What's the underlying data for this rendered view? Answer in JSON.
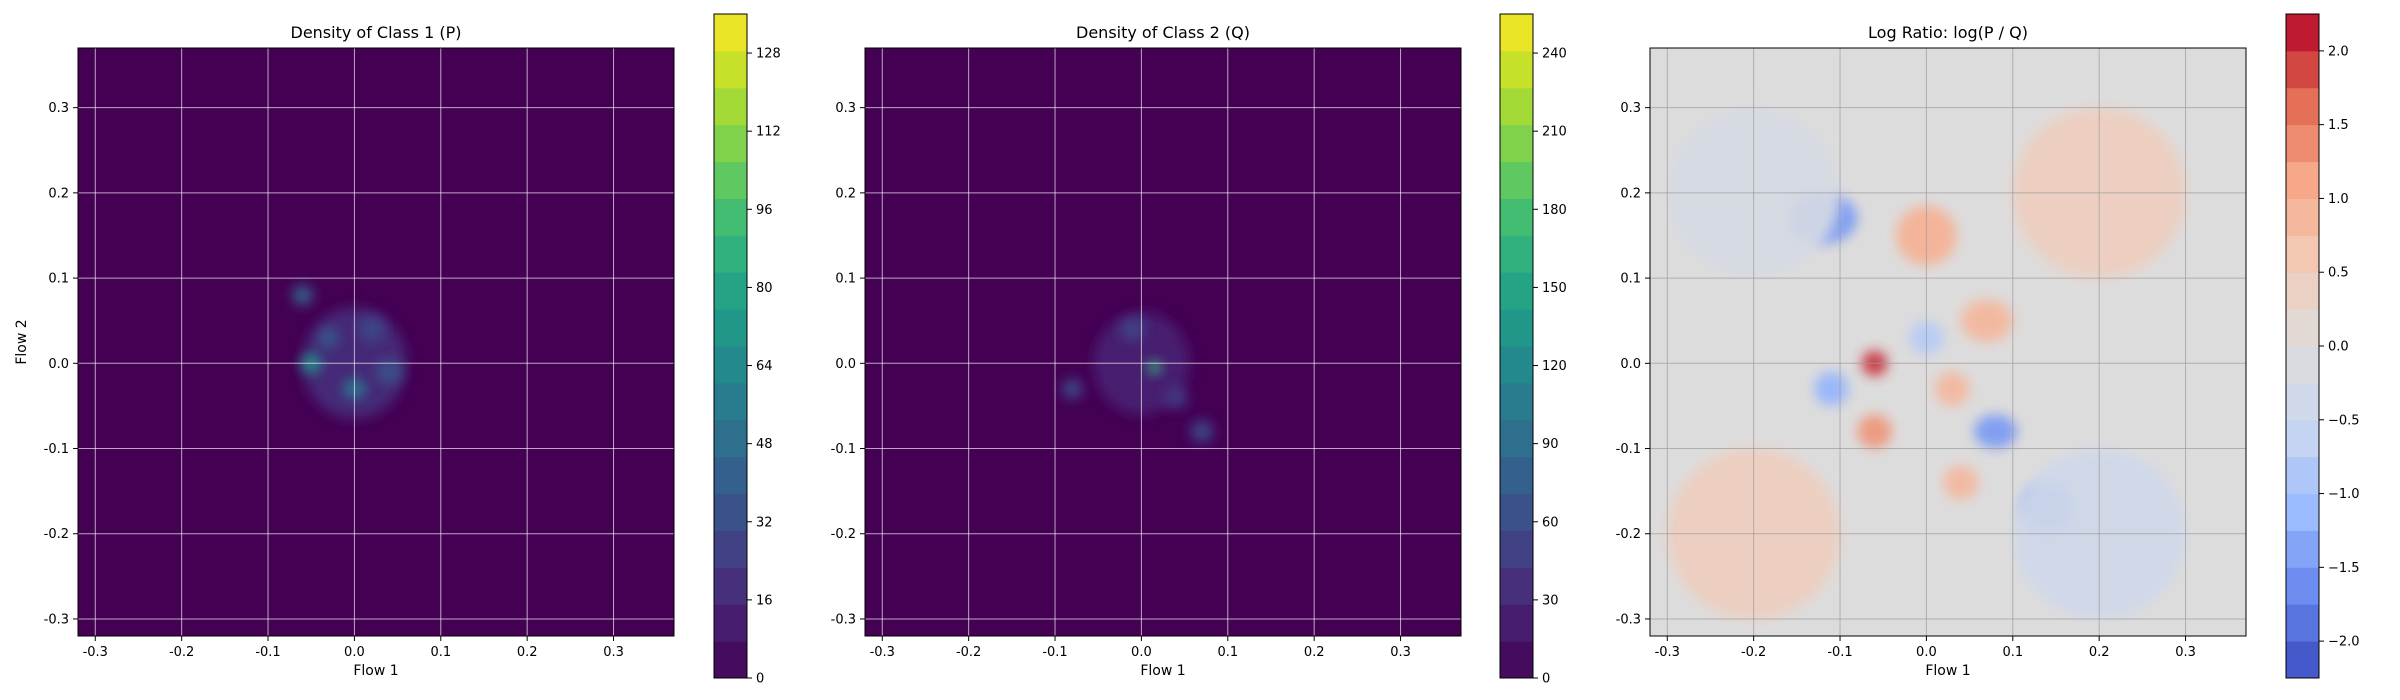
{
  "panels": [
    {
      "title": "Density of Class 1 (P)",
      "xlabel": "Flow 1",
      "ylabel": "Flow 2",
      "xlim": [
        -0.32,
        0.37
      ],
      "ylim": [
        -0.32,
        0.37
      ],
      "xticks": [
        "-0.3",
        "-0.2",
        "-0.1",
        "0.0",
        "0.1",
        "0.2",
        "0.3"
      ],
      "yticks": [
        "-0.3",
        "-0.2",
        "-0.1",
        "0.0",
        "0.1",
        "0.2",
        "0.3"
      ],
      "colorbar": {
        "colormap": "viridis",
        "range": [
          0,
          136
        ],
        "ticks": [
          "0",
          "16",
          "32",
          "48",
          "64",
          "80",
          "96",
          "112",
          "128"
        ]
      }
    },
    {
      "title": "Density of Class 2 (Q)",
      "xlabel": "Flow 1",
      "ylabel": "",
      "xlim": [
        -0.32,
        0.37
      ],
      "ylim": [
        -0.32,
        0.37
      ],
      "xticks": [
        "-0.3",
        "-0.2",
        "-0.1",
        "0.0",
        "0.1",
        "0.2",
        "0.3"
      ],
      "yticks": [
        "-0.3",
        "-0.2",
        "-0.1",
        "0.0",
        "0.1",
        "0.2",
        "0.3"
      ],
      "colorbar": {
        "colormap": "viridis",
        "range": [
          0,
          255
        ],
        "ticks": [
          "0",
          "30",
          "60",
          "90",
          "120",
          "150",
          "180",
          "210",
          "240"
        ]
      }
    },
    {
      "title": "Log Ratio: log(P / Q)",
      "xlabel": "Flow 1",
      "ylabel": "",
      "xlim": [
        -0.32,
        0.37
      ],
      "ylim": [
        -0.32,
        0.37
      ],
      "xticks": [
        "-0.3",
        "-0.2",
        "-0.1",
        "0.0",
        "0.1",
        "0.2",
        "0.3"
      ],
      "yticks": [
        "-0.3",
        "-0.2",
        "-0.1",
        "0.0",
        "0.1",
        "0.2",
        "0.3"
      ],
      "colorbar": {
        "colormap": "coolwarm",
        "range": [
          -2.25,
          2.25
        ],
        "ticks": [
          "−2.0",
          "−1.5",
          "−1.0",
          "−0.5",
          "0.0",
          "0.5",
          "1.0",
          "1.5",
          "2.0"
        ]
      }
    }
  ],
  "chart_data": [
    {
      "type": "heatmap",
      "title": "Density of Class 1 (P)",
      "xlabel": "Flow 1",
      "ylabel": "Flow 2",
      "xlim": [
        -0.32,
        0.37
      ],
      "ylim": [
        -0.32,
        0.37
      ],
      "grid": true,
      "colormap": "viridis",
      "color_range": [
        0,
        136
      ],
      "colorbar_ticks": [
        0,
        16,
        32,
        48,
        64,
        80,
        96,
        112,
        128
      ],
      "features": [
        {
          "x": 0.0,
          "y": 0.0,
          "sx": 0.06,
          "sy": 0.065,
          "value": 18
        },
        {
          "x": -0.05,
          "y": 0.0,
          "sx": 0.012,
          "sy": 0.012,
          "value": 70
        },
        {
          "x": 0.0,
          "y": -0.03,
          "sx": 0.014,
          "sy": 0.012,
          "value": 55
        },
        {
          "x": -0.06,
          "y": 0.08,
          "sx": 0.012,
          "sy": 0.012,
          "value": 45
        },
        {
          "x": -0.03,
          "y": 0.03,
          "sx": 0.012,
          "sy": 0.012,
          "value": 40
        },
        {
          "x": 0.04,
          "y": -0.01,
          "sx": 0.015,
          "sy": 0.015,
          "value": 35
        },
        {
          "x": 0.02,
          "y": 0.04,
          "sx": 0.015,
          "sy": 0.015,
          "value": 30
        }
      ]
    },
    {
      "type": "heatmap",
      "title": "Density of Class 2 (Q)",
      "xlabel": "Flow 1",
      "ylabel": "",
      "xlim": [
        -0.32,
        0.37
      ],
      "ylim": [
        -0.32,
        0.37
      ],
      "grid": true,
      "colormap": "viridis",
      "color_range": [
        0,
        255
      ],
      "colorbar_ticks": [
        0,
        30,
        60,
        90,
        120,
        150,
        180,
        210,
        240
      ],
      "features": [
        {
          "x": 0.0,
          "y": 0.0,
          "sx": 0.055,
          "sy": 0.06,
          "value": 25
        },
        {
          "x": 0.015,
          "y": -0.005,
          "sx": 0.008,
          "sy": 0.008,
          "value": 170
        },
        {
          "x": -0.08,
          "y": -0.03,
          "sx": 0.012,
          "sy": 0.012,
          "value": 60
        },
        {
          "x": -0.01,
          "y": 0.04,
          "sx": 0.014,
          "sy": 0.014,
          "value": 55
        },
        {
          "x": 0.07,
          "y": -0.08,
          "sx": 0.013,
          "sy": 0.013,
          "value": 60
        },
        {
          "x": 0.04,
          "y": -0.04,
          "sx": 0.014,
          "sy": 0.014,
          "value": 45
        }
      ]
    },
    {
      "type": "heatmap",
      "title": "Log Ratio: log(P / Q)",
      "xlabel": "Flow 1",
      "ylabel": "",
      "xlim": [
        -0.32,
        0.37
      ],
      "ylim": [
        -0.32,
        0.37
      ],
      "grid": true,
      "colormap": "coolwarm",
      "color_range": [
        -2.25,
        2.25
      ],
      "colorbar_ticks": [
        -2.0,
        -1.5,
        -1.0,
        -0.5,
        0.0,
        0.5,
        1.0,
        1.5,
        2.0
      ],
      "features": [
        {
          "x": -0.12,
          "y": 0.17,
          "sx": 0.04,
          "sy": 0.03,
          "value": -1.5
        },
        {
          "x": 0.0,
          "y": 0.15,
          "sx": 0.035,
          "sy": 0.035,
          "value": 1.0
        },
        {
          "x": -0.06,
          "y": 0.0,
          "sx": 0.015,
          "sy": 0.015,
          "value": 2.0
        },
        {
          "x": -0.06,
          "y": -0.08,
          "sx": 0.02,
          "sy": 0.02,
          "value": 1.3
        },
        {
          "x": 0.07,
          "y": 0.05,
          "sx": 0.03,
          "sy": 0.025,
          "value": 0.9
        },
        {
          "x": 0.08,
          "y": -0.08,
          "sx": 0.025,
          "sy": 0.02,
          "value": -1.5
        },
        {
          "x": -0.11,
          "y": -0.03,
          "sx": 0.02,
          "sy": 0.02,
          "value": -1.2
        },
        {
          "x": 0.14,
          "y": -0.17,
          "sx": 0.03,
          "sy": 0.03,
          "value": -1.4
        },
        {
          "x": 0.04,
          "y": -0.14,
          "sx": 0.02,
          "sy": 0.02,
          "value": 0.9
        },
        {
          "x": 0.0,
          "y": 0.03,
          "sx": 0.02,
          "sy": 0.02,
          "value": -0.8
        },
        {
          "x": 0.03,
          "y": -0.03,
          "sx": 0.02,
          "sy": 0.02,
          "value": 0.9
        },
        {
          "x": 0.2,
          "y": 0.2,
          "sx": 0.1,
          "sy": 0.1,
          "value": 0.45
        },
        {
          "x": -0.2,
          "y": -0.2,
          "sx": 0.1,
          "sy": 0.1,
          "value": 0.45
        },
        {
          "x": -0.2,
          "y": 0.2,
          "sx": 0.1,
          "sy": 0.1,
          "value": -0.2
        },
        {
          "x": 0.2,
          "y": -0.2,
          "sx": 0.1,
          "sy": 0.1,
          "value": -0.4
        }
      ]
    }
  ]
}
